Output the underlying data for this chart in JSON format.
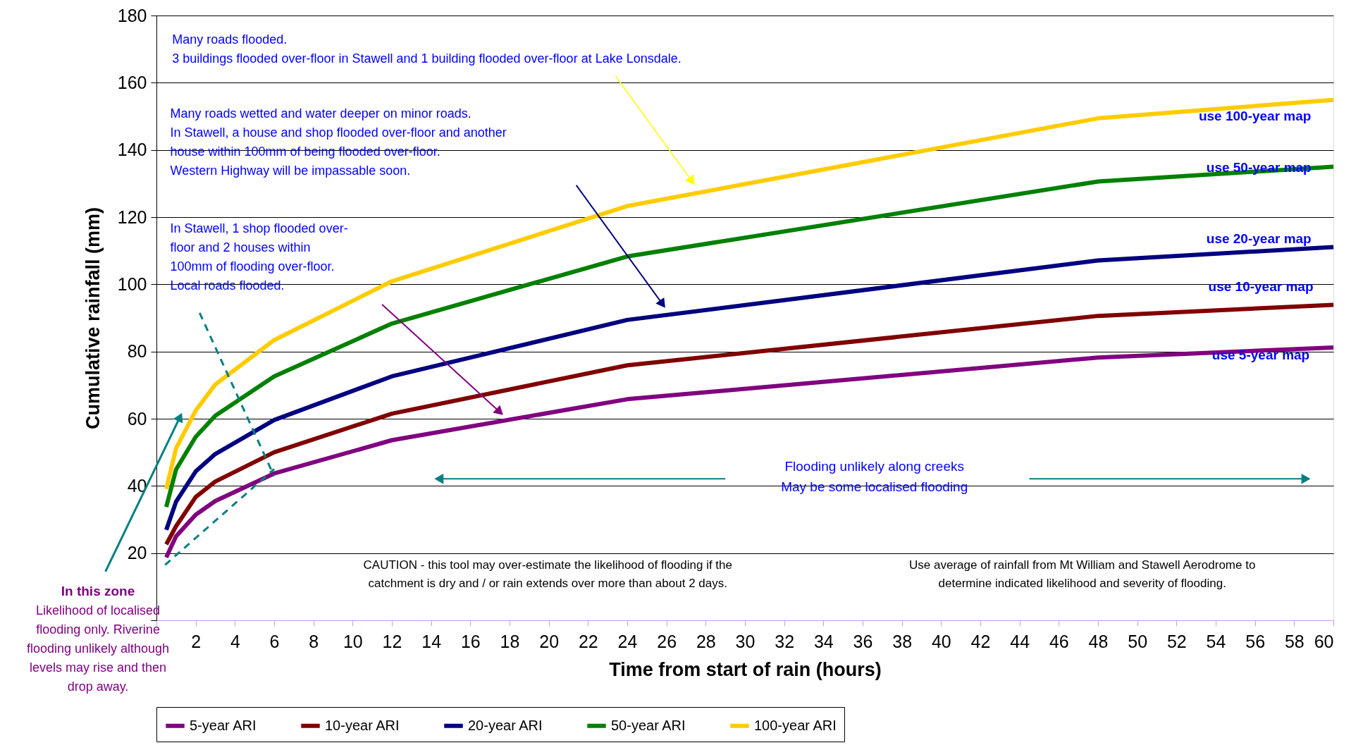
{
  "chart_data": {
    "type": "line",
    "xlabel": "Time from start of rain (hours)",
    "ylabel": "Cumulative rainfall (mm)",
    "x": [
      0.5,
      1,
      2,
      3,
      6,
      12,
      24,
      48,
      60
    ],
    "series": [
      {
        "name": "5-year ARI",
        "color": "#800080",
        "values": [
          18.7,
          25,
          31.4,
          35.5,
          43.7,
          53.6,
          65.8,
          78.2,
          81.2
        ]
      },
      {
        "name": "10-year ARI",
        "color": "#800000",
        "values": [
          22.6,
          28,
          36.7,
          41.3,
          50,
          61.5,
          75.9,
          90.6,
          93.9
        ]
      },
      {
        "name": "20-year ARI",
        "color": "#000080",
        "values": [
          26.9,
          35.3,
          44.3,
          49.5,
          59.6,
          72.6,
          89.4,
          107.1,
          111.1
        ]
      },
      {
        "name": "50-year ARI",
        "color": "#008000",
        "values": [
          33.7,
          44.9,
          54.6,
          60.9,
          72.6,
          88.3,
          108.3,
          130.6,
          135
        ]
      },
      {
        "name": "100-year ARI",
        "color": "#ffcc00",
        "values": [
          39.1,
          51.2,
          62.4,
          70.2,
          83.4,
          100.9,
          123.3,
          149.4,
          154.9
        ]
      },
      {
        "type": "line",
        "color": "#008080",
        "line_style": "dashed",
        "x": [
          2.2,
          6
        ],
        "values": [
          91.5,
          42.9
        ]
      },
      {
        "type": "line",
        "color": "#008080",
        "line_style": "dashed",
        "x": [
          0.44,
          6
        ],
        "values": [
          16.5,
          45
        ]
      }
    ],
    "xlim": [
      0,
      60
    ],
    "xticks": [
      {
        "value": 0,
        "label": null
      },
      2,
      4,
      6,
      8,
      10,
      12,
      14,
      16,
      18,
      20,
      22,
      24,
      26,
      28,
      30,
      32,
      34,
      36,
      38,
      40,
      42,
      44,
      46,
      48,
      50,
      52,
      54,
      56,
      58,
      60
    ],
    "ylim": [
      0,
      180
    ],
    "yticks": [
      {
        "value": 0,
        "label": null
      },
      20,
      40,
      60,
      80,
      100,
      120,
      140,
      160,
      180
    ],
    "grid": "y",
    "legend": "bottom",
    "marker": "none",
    "line_style": "solid",
    "annotations": [
      "Many roads flooded.\n3 buildings flooded over-floor in Stawell and 1 building flooded over-floor at Lake Lonsdale.",
      "Many roads wetted and water deeper on minor roads.\nIn Stawell, a house and shop flooded over-floor and another\nhouse within 100mm of being flooded over-floor.\nWestern Highway will be impassable soon.",
      "In Stawell, 1 shop flooded over-\nfloor and 2 houses within\n100mm of flooding over-floor.\nLocal roads flooded.",
      "Flooding unlikely along creeks\nMay be some localised flooding",
      "CAUTION - this tool may over-estimate the likelihood of flooding if the\ncatchment is dry and / or rain extends over more than about 2 days.",
      "Use average of rainfall from Mt William and Stawell Aerodrome to\ndetermine indicated likelihood and severity of flooding.",
      "In this zone",
      "Likelihood of localised\nflooding only.  Riverine\nflooding unlikely although\nlevels may rise and then\ndrop away.",
      "use 100-year map",
      "use 50-year map",
      "use 20-year map",
      "use 10-year map",
      "use 5-year map"
    ]
  }
}
